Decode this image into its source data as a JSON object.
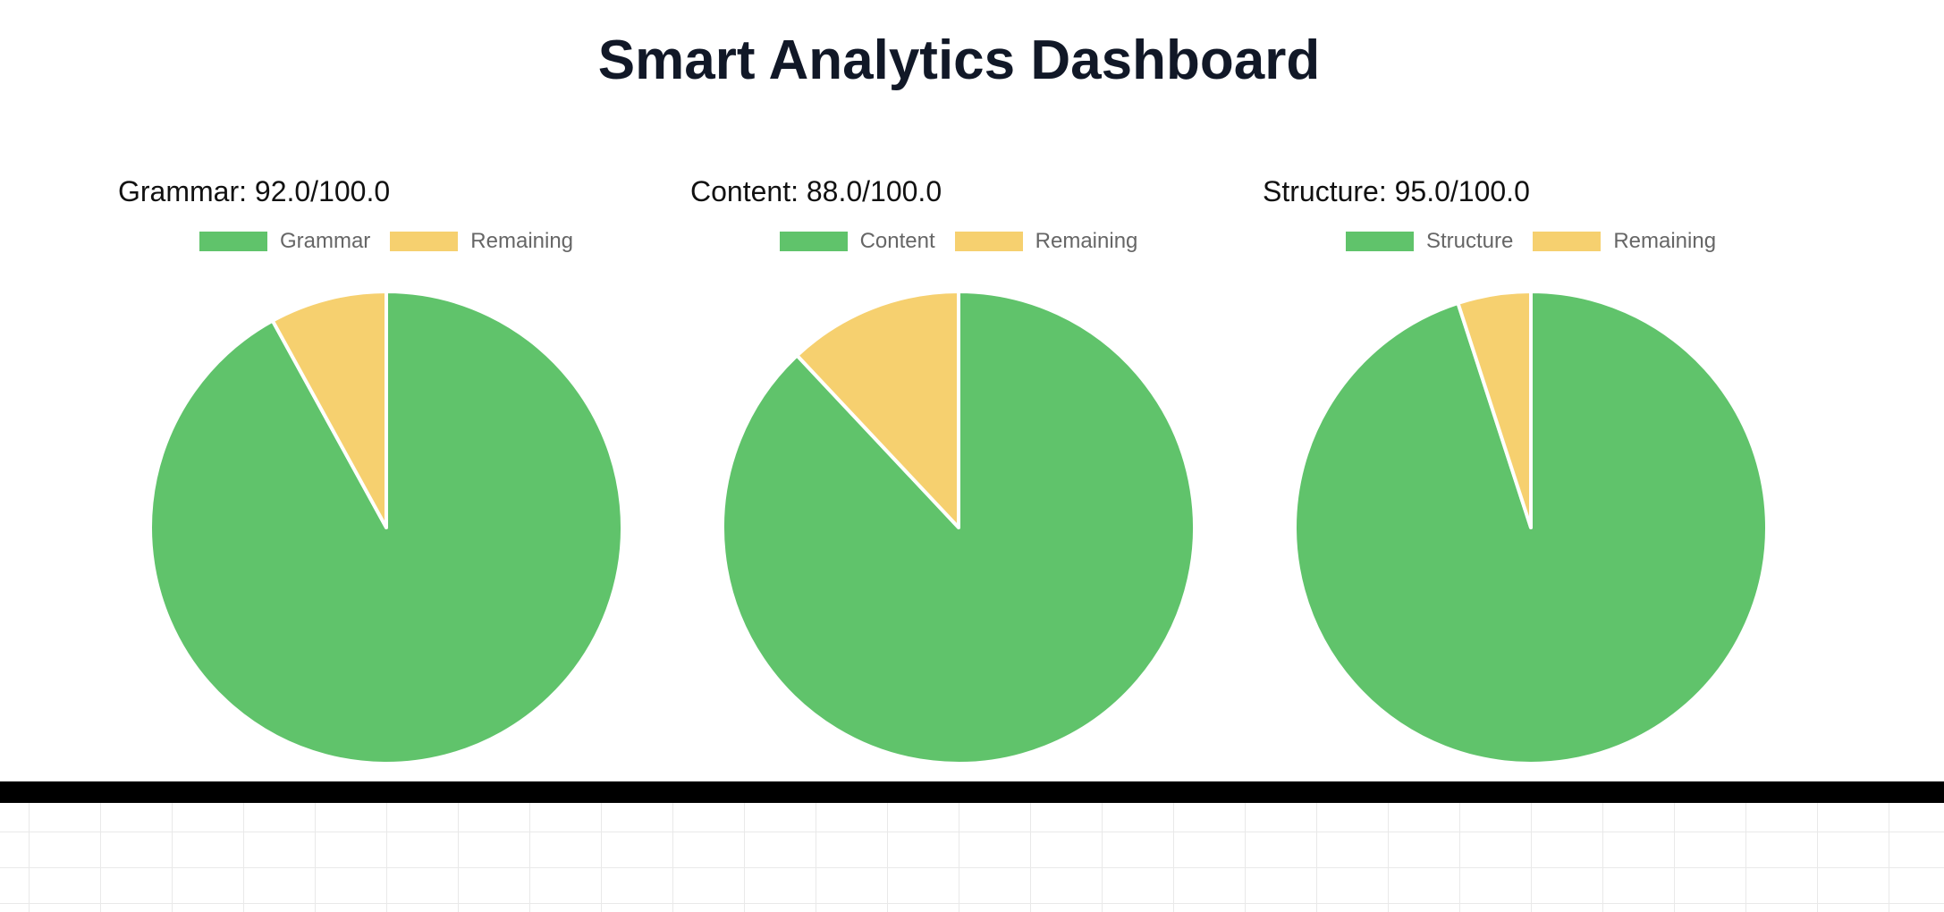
{
  "page": {
    "title": "Smart Analytics Dashboard"
  },
  "colors": {
    "score": "#60c36b",
    "remaining": "#f6d06f",
    "slice_border": "#ffffff"
  },
  "chart_data": [
    {
      "type": "pie",
      "title": "Grammar: 92.0/100.0",
      "labels": [
        "Grammar",
        "Remaining"
      ],
      "values": [
        92.0,
        8.0
      ],
      "colors": [
        "#60c36b",
        "#f6d06f"
      ],
      "legend_position": "top"
    },
    {
      "type": "pie",
      "title": "Content: 88.0/100.0",
      "labels": [
        "Content",
        "Remaining"
      ],
      "values": [
        88.0,
        12.0
      ],
      "colors": [
        "#60c36b",
        "#f6d06f"
      ],
      "legend_position": "top"
    },
    {
      "type": "pie",
      "title": "Structure: 95.0/100.0",
      "labels": [
        "Structure",
        "Remaining"
      ],
      "values": [
        95.0,
        5.0
      ],
      "colors": [
        "#60c36b",
        "#f6d06f"
      ],
      "legend_position": "top"
    }
  ]
}
